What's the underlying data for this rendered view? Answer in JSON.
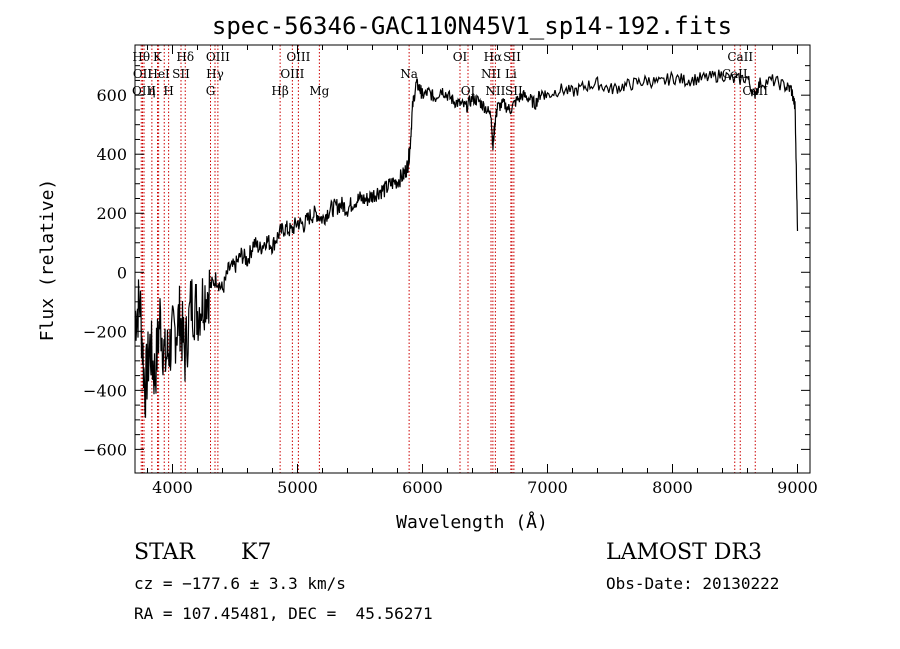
{
  "chart_data": {
    "type": "line",
    "title": "spec-56346-GAC110N45V1_sp14-192.fits",
    "xlabel": "Wavelength (Å)",
    "ylabel": "Flux (relative)",
    "xlim": [
      3700,
      9100
    ],
    "ylim": [
      -680,
      770
    ],
    "xticks": [
      4000,
      5000,
      6000,
      7000,
      8000,
      9000
    ],
    "xtick_labels": [
      "4000",
      "5000",
      "6000",
      "7000",
      "8000",
      "9000"
    ],
    "yticks": [
      -600,
      -400,
      -200,
      0,
      200,
      400,
      600
    ],
    "ytick_labels": [
      "−600",
      "−400",
      "−200",
      "0",
      "200",
      "400",
      "600"
    ],
    "series": [
      {
        "name": "spectrum",
        "x": [
          3700,
          3740,
          3780,
          3820,
          3860,
          3900,
          3940,
          3980,
          4020,
          4060,
          4100,
          4150,
          4200,
          4250,
          4300,
          4350,
          4400,
          4450,
          4500,
          4550,
          4600,
          4650,
          4700,
          4750,
          4800,
          4850,
          4900,
          4950,
          5000,
          5050,
          5100,
          5150,
          5200,
          5250,
          5300,
          5350,
          5400,
          5450,
          5500,
          5550,
          5600,
          5650,
          5700,
          5750,
          5800,
          5850,
          5880,
          5900,
          5920,
          5950,
          5980,
          6000,
          6050,
          6100,
          6150,
          6200,
          6250,
          6300,
          6350,
          6400,
          6450,
          6500,
          6550,
          6563,
          6580,
          6600,
          6650,
          6700,
          6750,
          6800,
          6850,
          6900,
          6950,
          7000,
          7100,
          7200,
          7300,
          7400,
          7500,
          7600,
          7700,
          7800,
          7900,
          8000,
          8100,
          8200,
          8300,
          8400,
          8500,
          8600,
          8650,
          8700,
          8800,
          8900,
          8950,
          8980,
          9000
        ],
        "y": [
          -150,
          -100,
          -400,
          -250,
          -350,
          -150,
          -300,
          -250,
          -200,
          -150,
          -280,
          -100,
          -130,
          -80,
          -50,
          -20,
          -60,
          10,
          20,
          60,
          40,
          100,
          80,
          110,
          90,
          130,
          150,
          140,
          170,
          160,
          190,
          200,
          180,
          210,
          220,
          230,
          215,
          240,
          250,
          245,
          260,
          275,
          280,
          300,
          310,
          330,
          360,
          420,
          560,
          640,
          620,
          600,
          610,
          590,
          620,
          600,
          580,
          570,
          560,
          590,
          580,
          560,
          530,
          420,
          510,
          560,
          570,
          550,
          580,
          600,
          590,
          570,
          610,
          600,
          620,
          610,
          630,
          640,
          620,
          630,
          640,
          650,
          640,
          660,
          650,
          655,
          660,
          670,
          650,
          660,
          600,
          640,
          650,
          630,
          620,
          560,
          140
        ]
      }
    ],
    "lines": [
      {
        "wave": 3750,
        "label": "Hθ",
        "row": 0
      },
      {
        "wave": 3760,
        "label": "OII",
        "row": 1
      },
      {
        "wave": 3772,
        "label": "OIII",
        "row": 2
      },
      {
        "wave": 3835,
        "label": "η",
        "row": 2
      },
      {
        "wave": 3880,
        "label": "K",
        "row": 0
      },
      {
        "wave": 3889,
        "label": "HeI",
        "row": 1
      },
      {
        "wave": 3934,
        "label": "",
        "row": 0
      },
      {
        "wave": 3969,
        "label": "H",
        "row": 2
      },
      {
        "wave": 4068,
        "label": "SII",
        "row": 1
      },
      {
        "wave": 4102,
        "label": "Hδ",
        "row": 0
      },
      {
        "wave": 4304,
        "label": "G",
        "row": 2
      },
      {
        "wave": 4340,
        "label": "Hγ",
        "row": 1
      },
      {
        "wave": 4363,
        "label": "OIII",
        "row": 0
      },
      {
        "wave": 4861,
        "label": "Hβ",
        "row": 2
      },
      {
        "wave": 4959,
        "label": "OIII",
        "row": 1
      },
      {
        "wave": 5007,
        "label": "OIII",
        "row": 0
      },
      {
        "wave": 5175,
        "label": "Mg",
        "row": 2
      },
      {
        "wave": 5893,
        "label": "Na",
        "row": 1
      },
      {
        "wave": 6300,
        "label": "OI",
        "row": 0
      },
      {
        "wave": 6364,
        "label": "OI",
        "row": 2
      },
      {
        "wave": 6548,
        "label": "NII",
        "row": 1
      },
      {
        "wave": 6563,
        "label": "Hα",
        "row": 0
      },
      {
        "wave": 6583,
        "label": "NII",
        "row": 2
      },
      {
        "wave": 6707,
        "label": "Li",
        "row": 1
      },
      {
        "wave": 6716,
        "label": "SII",
        "row": 0
      },
      {
        "wave": 6731,
        "label": "SII",
        "row": 2
      },
      {
        "wave": 8498,
        "label": "CaII",
        "row": 1
      },
      {
        "wave": 8542,
        "label": "CaII",
        "row": 0
      },
      {
        "wave": 8662,
        "label": "CaII",
        "row": 2
      }
    ]
  },
  "info": {
    "object_class": "STAR",
    "subclass": "K7",
    "cz": "cz = −177.6 ± 3.3 km/s",
    "coords": "RA = 107.45481, DEC =  45.56271",
    "survey": "LAMOST DR3",
    "obs_date": "Obs-Date: 20130222"
  }
}
